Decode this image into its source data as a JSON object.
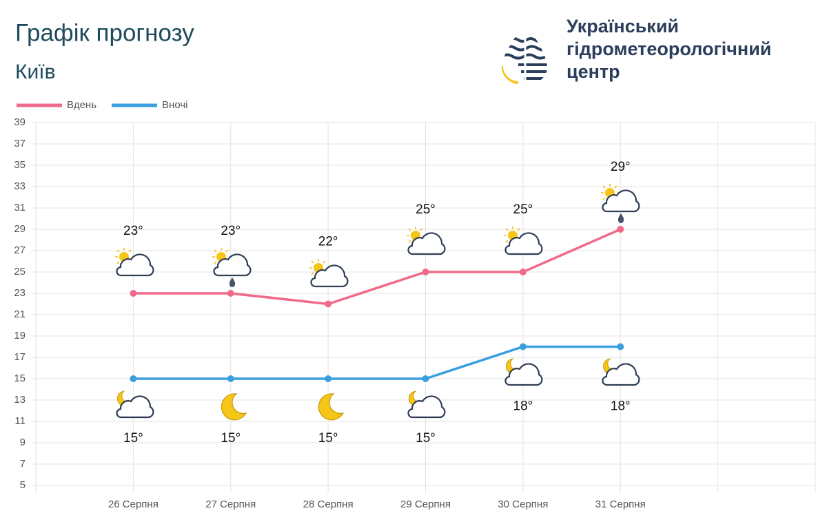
{
  "header": {
    "title": "Графік прогнозу",
    "city": "Київ"
  },
  "logo": {
    "lines": [
      "Український",
      "гідрометеорологічний",
      "центр"
    ]
  },
  "chart_data": {
    "type": "line",
    "categories": [
      "26 Серпня",
      "27 Серпня",
      "28 Серпня",
      "29 Серпня",
      "30 Серпня",
      "31 Серпня"
    ],
    "series": [
      {
        "name": "Вдень",
        "color": "#f06a89",
        "values": [
          23,
          23,
          22,
          25,
          25,
          29
        ],
        "value_labels": [
          "23°",
          "23°",
          "22°",
          "25°",
          "25°",
          "29°"
        ]
      },
      {
        "name": "Вночі",
        "color": "#3a9fe0",
        "values": [
          15,
          15,
          15,
          15,
          18,
          18
        ],
        "value_labels": [
          "15°",
          "15°",
          "15°",
          "15°",
          "18°",
          "18°"
        ]
      }
    ],
    "ylim": [
      5,
      39
    ],
    "yticks": [
      5,
      7,
      9,
      11,
      13,
      15,
      17,
      19,
      21,
      23,
      25,
      27,
      29,
      31,
      33,
      35,
      37,
      39
    ],
    "grid": true
  }
}
